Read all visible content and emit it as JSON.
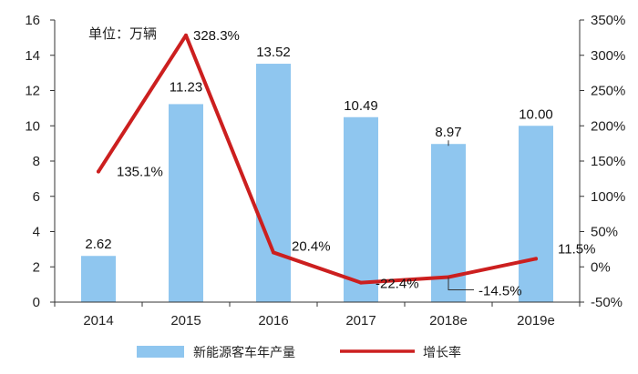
{
  "chart_data": {
    "type": "bar",
    "unit_label": "单位：万辆",
    "categories": [
      "2014",
      "2015",
      "2016",
      "2017",
      "2018e",
      "2019e"
    ],
    "series": [
      {
        "name": "新能源客车年产量",
        "kind": "bar",
        "axis": "left",
        "color": "#8fc6ef",
        "values": [
          2.62,
          11.23,
          13.52,
          10.49,
          8.97,
          10.0
        ],
        "data_labels": [
          "2.62",
          "11.23",
          "13.52",
          "10.49",
          "8.97",
          "10.00"
        ]
      },
      {
        "name": "增长率",
        "kind": "line",
        "axis": "right",
        "color": "#cc1f1f",
        "values": [
          135.1,
          328.3,
          20.4,
          -22.4,
          -14.5,
          11.5
        ],
        "data_labels": [
          "135.1%",
          "328.3%",
          "20.4%",
          "-22.4%",
          "-14.5%",
          "11.5%"
        ]
      }
    ],
    "y_left": {
      "min": 0,
      "max": 16,
      "ticks": [
        "0",
        "2",
        "4",
        "6",
        "8",
        "10",
        "12",
        "14",
        "16"
      ]
    },
    "y_right": {
      "min": -50,
      "max": 350,
      "ticks": [
        "-50%",
        "0%",
        "50%",
        "100%",
        "150%",
        "200%",
        "250%",
        "300%",
        "350%"
      ]
    },
    "grid": false,
    "legend_position": "bottom"
  }
}
